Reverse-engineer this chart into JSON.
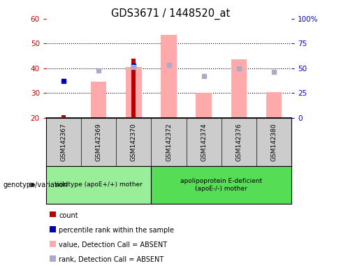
{
  "title": "GDS3671 / 1448520_at",
  "samples": [
    "GSM142367",
    "GSM142369",
    "GSM142370",
    "GSM142372",
    "GSM142374",
    "GSM142376",
    "GSM142380"
  ],
  "ylim_left": [
    20,
    60
  ],
  "ylim_right": [
    0,
    100
  ],
  "yticks_left": [
    20,
    30,
    40,
    50,
    60
  ],
  "yticks_right": [
    0,
    25,
    50,
    75,
    100
  ],
  "yticklabels_right": [
    "0",
    "25",
    "50",
    "75",
    "100%"
  ],
  "count_values": [
    21,
    null,
    44,
    null,
    null,
    null,
    null
  ],
  "count_color": "#bb0000",
  "percentile_values": [
    35,
    null,
    41,
    null,
    null,
    null,
    null
  ],
  "percentile_color": "#0000bb",
  "bar_values": [
    null,
    34.5,
    40.5,
    53.5,
    30,
    43.5,
    30.5
  ],
  "bar_color": "#ffaaaa",
  "rank_values": [
    null,
    39,
    40.5,
    41.5,
    37,
    40,
    38.5
  ],
  "rank_color": "#aaaacc",
  "bar_bottom": 20,
  "group1_label": "wildtype (apoE+/+) mother",
  "group2_label": "apolipoprotein E-deficient\n(apoE-/-) mother",
  "group1_color": "#99ee99",
  "group2_color": "#55dd55",
  "group_row_label": "genotype/variation",
  "legend_items": [
    {
      "label": "count",
      "color": "#bb0000"
    },
    {
      "label": "percentile rank within the sample",
      "color": "#0000bb"
    },
    {
      "label": "value, Detection Call = ABSENT",
      "color": "#ffaaaa"
    },
    {
      "label": "rank, Detection Call = ABSENT",
      "color": "#aaaacc"
    }
  ],
  "bg_color": "#ffffff",
  "plot_bg_color": "#ffffff",
  "left_tick_color": "#cc0000",
  "right_tick_color": "#0000cc",
  "xtick_bg_color": "#cccccc",
  "grid_yticks": [
    30,
    40,
    50
  ]
}
